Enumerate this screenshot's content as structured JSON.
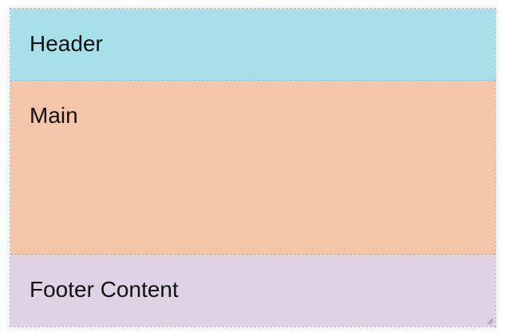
{
  "header": {
    "label": "Header"
  },
  "main": {
    "label": "Main"
  },
  "footer": {
    "label": "Footer Content"
  },
  "colors": {
    "header_bg": "#a8e0ea",
    "main_bg": "#f5c7aa",
    "footer_bg": "#e0d2e5"
  },
  "icons": {
    "resize": "resize-grip-icon"
  }
}
